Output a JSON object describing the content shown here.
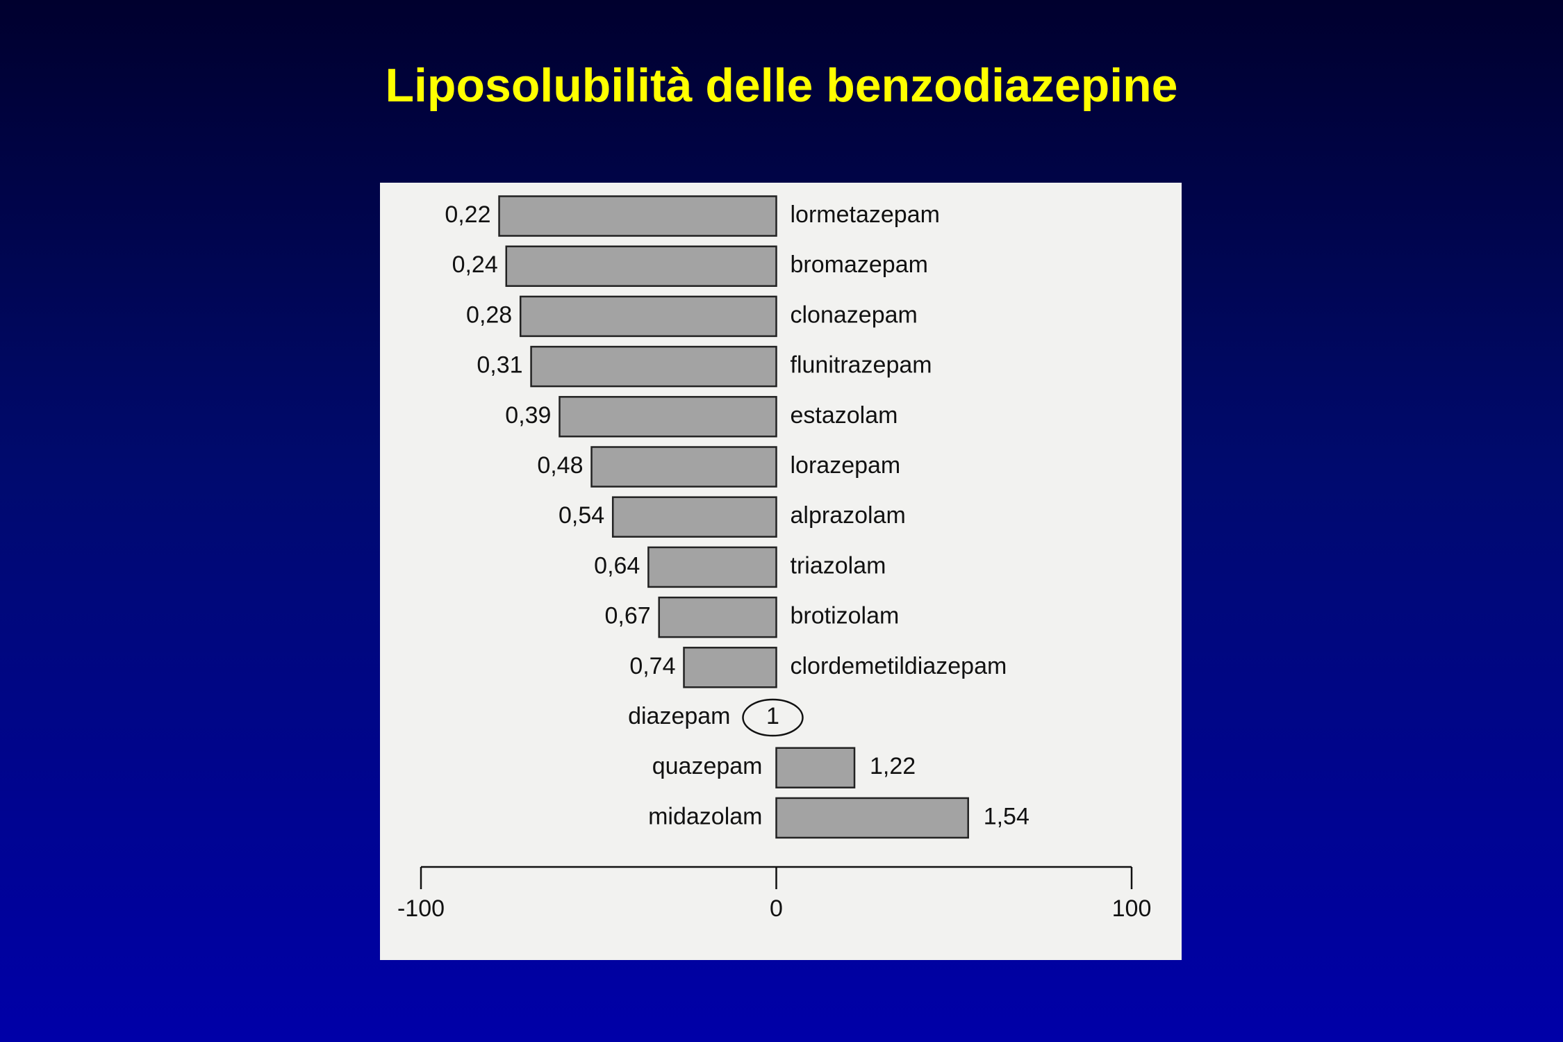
{
  "chart_data": {
    "type": "bar",
    "orientation": "horizontal",
    "title": "Liposolubilità delle benzodiazepine",
    "categories": [
      "lormetazepam",
      "bromazepam",
      "clonazepam",
      "flunitrazepam",
      "estazolam",
      "lorazepam",
      "alprazolam",
      "triazolam",
      "brotizolam",
      "clordemetildiazepam",
      "diazepam",
      "quazepam",
      "midazolam"
    ],
    "values": [
      -78,
      -76,
      -72,
      -69,
      -61,
      -52,
      -46,
      -36,
      -33,
      -26,
      0,
      22,
      54
    ],
    "value_labels": [
      "0,22",
      "0,24",
      "0,28",
      "0,31",
      "0,39",
      "0,48",
      "0,54",
      "0,64",
      "0,67",
      "0,74",
      "1",
      "1,22",
      "1,54"
    ],
    "color": "#a3a3a3",
    "xlim": [
      -100,
      100
    ],
    "xticks": [
      -100,
      0,
      100
    ]
  }
}
